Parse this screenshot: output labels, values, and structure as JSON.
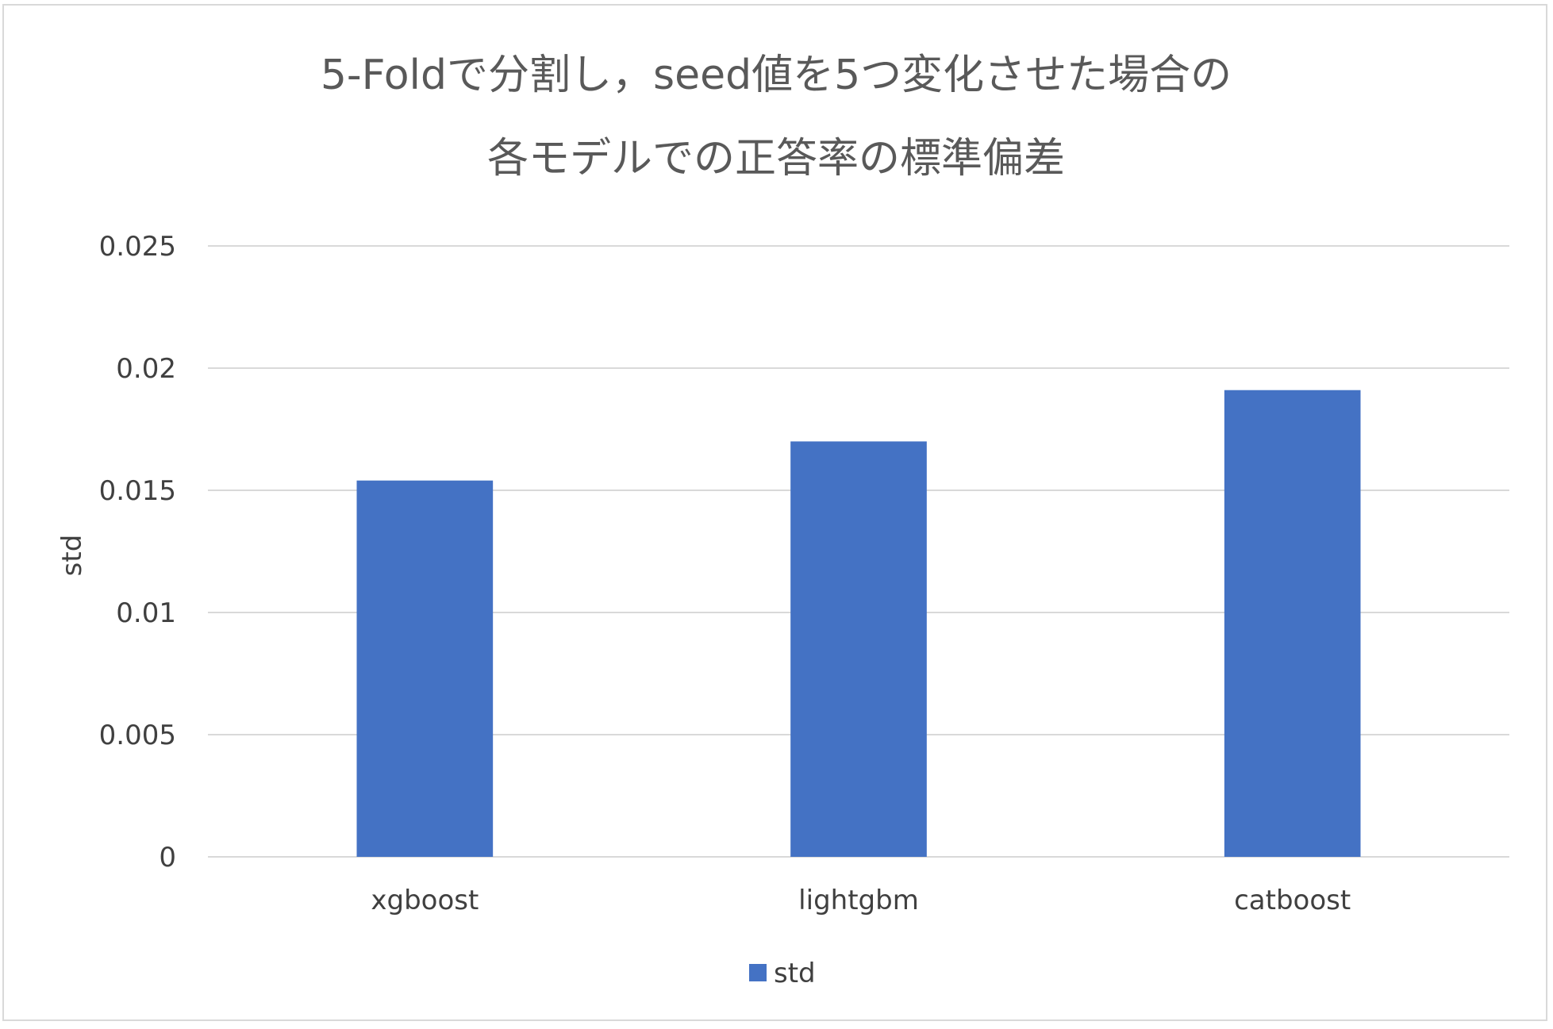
{
  "chart_data": {
    "type": "bar",
    "title_lines": [
      "5-Foldで分割し，seed値を5つ変化させた場合の",
      "各モデルでの正答率の標準偏差"
    ],
    "categories": [
      "xgboost",
      "lightgbm",
      "catboost"
    ],
    "series": [
      {
        "name": "std",
        "values": [
          0.0154,
          0.017,
          0.0191
        ],
        "color": "#4472c4"
      }
    ],
    "ylabel": "std",
    "xlabel": "",
    "ylim": [
      0,
      0.025
    ],
    "yticks": [
      0,
      0.005,
      0.01,
      0.015,
      0.02,
      0.025
    ],
    "ytick_labels": [
      "0",
      "0.005",
      "0.01",
      "0.015",
      "0.02",
      "0.025"
    ],
    "grid": true,
    "legend_position": "bottom",
    "gridline_color": "#d9d9d9"
  }
}
